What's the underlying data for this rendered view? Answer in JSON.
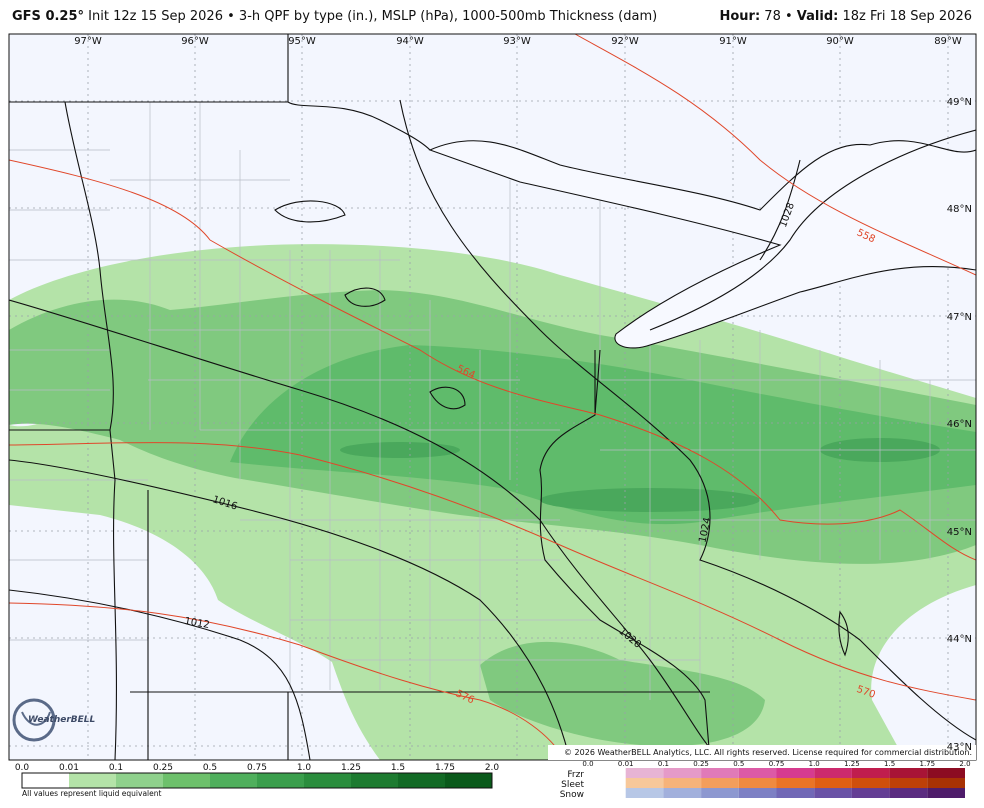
{
  "header": {
    "model": "GFS 0.25°",
    "separator": "•",
    "init": "Init 12z 15 Sep 2026",
    "product": "3-h QPF by type (in.), MSLP (hPa), 1000-500mb Thickness (dam)",
    "hour_label": "Hour:",
    "hour": "78",
    "valid_label": "Valid:",
    "valid": "18z Fri 18 Sep 2026"
  },
  "map": {
    "longitude_labels": [
      "97°W",
      "96°W",
      "95°W",
      "94°W",
      "93°W",
      "92°W",
      "91°W",
      "90°W",
      "89°W"
    ],
    "latitude_labels": [
      "49°N",
      "48°N",
      "47°N",
      "46°N",
      "45°N",
      "44°N",
      "43°N"
    ],
    "isobar_labels": [
      "1028",
      "1024",
      "1020",
      "1016",
      "1012"
    ],
    "thickness_labels": [
      "558",
      "564",
      "570",
      "576"
    ],
    "logo": "WeatherBELL",
    "copyright": "© 2026 WeatherBELL Analytics, LLC. All rights reserved. License required for commercial distribution."
  },
  "legend": {
    "rain_ticks": [
      "0.0",
      "0.01",
      "0.1",
      "0.25",
      "0.5",
      "0.75",
      "1.0",
      "1.25",
      "1.5",
      "1.75",
      "2.0"
    ],
    "note": "All values represent liquid equivalent",
    "types": [
      "Frzr",
      "Sleet",
      "Snow"
    ],
    "mixed_ticks": [
      "0.0",
      "0.01",
      "0.1",
      "0.25",
      "0.5",
      "0.75",
      "1.0",
      "1.25",
      "1.5",
      "1.75",
      "2.0"
    ]
  }
}
